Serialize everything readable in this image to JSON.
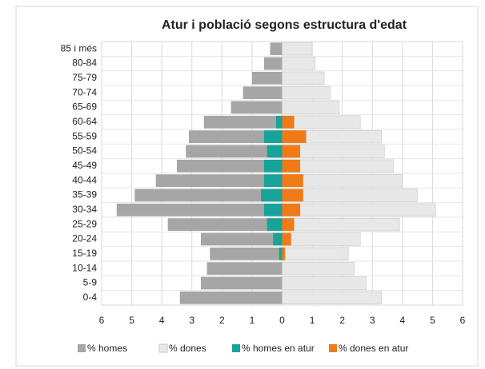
{
  "chart_data": {
    "type": "pyramid",
    "title": "Atur i població segons estructura d'edat",
    "categories": [
      "85 i més",
      "80-84",
      "75-79",
      "70-74",
      "65-69",
      "60-64",
      "55-59",
      "50-54",
      "45-49",
      "40-44",
      "35-39",
      "30-34",
      "25-29",
      "20-24",
      "15-19",
      "10-14",
      "5-9",
      "0-4"
    ],
    "series": [
      {
        "name": "% homes",
        "color": "#a6a6a6",
        "side": "left",
        "values": [
          0.4,
          0.6,
          1.0,
          1.3,
          1.7,
          2.6,
          3.1,
          3.2,
          3.5,
          4.2,
          4.9,
          5.5,
          3.8,
          2.7,
          2.4,
          2.5,
          2.7,
          3.4
        ]
      },
      {
        "name": "% dones",
        "color": "#e8e8e8",
        "side": "right",
        "values": [
          1.0,
          1.1,
          1.4,
          1.6,
          1.9,
          2.6,
          3.3,
          3.4,
          3.7,
          4.0,
          4.5,
          5.1,
          3.9,
          2.6,
          2.2,
          2.4,
          2.8,
          3.3
        ]
      },
      {
        "name": "% homes en atur",
        "color": "#17a39a",
        "side": "left",
        "values": [
          null,
          null,
          null,
          null,
          null,
          0.2,
          0.6,
          0.5,
          0.6,
          0.6,
          0.7,
          0.6,
          0.5,
          0.3,
          0.1,
          null,
          null,
          null
        ]
      },
      {
        "name": "% dones en atur",
        "color": "#f07a18",
        "side": "right",
        "values": [
          null,
          null,
          null,
          null,
          null,
          0.4,
          0.8,
          0.6,
          0.6,
          0.7,
          0.7,
          0.6,
          0.4,
          0.3,
          0.1,
          null,
          null,
          null
        ]
      }
    ],
    "xlim": [
      -6,
      6
    ],
    "xticks": [
      {
        "value": -6,
        "label": "6"
      },
      {
        "value": -5,
        "label": "5"
      },
      {
        "value": -4,
        "label": "4"
      },
      {
        "value": -3,
        "label": "3"
      },
      {
        "value": -2,
        "label": "2"
      },
      {
        "value": -1,
        "label": "1"
      },
      0,
      1,
      2,
      3,
      4,
      5,
      6
    ],
    "grid": true,
    "legend": "bottom"
  }
}
